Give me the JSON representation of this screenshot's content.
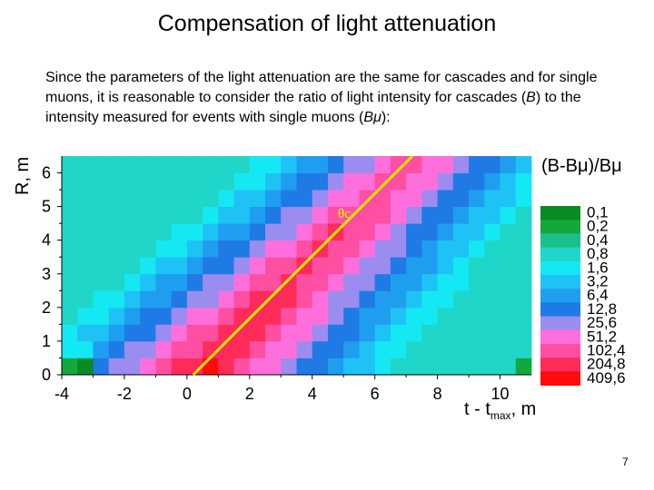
{
  "slide": {
    "title": "Compensation of light attenuation",
    "paragraph_pre": "Since the parameters of the light attenuation are the same for cascades and for single muons, it is reasonable to consider the ratio of light intensity for cascades (",
    "paragraph_B": "B",
    "paragraph_mid": ") to the intensity measured for events with single muons (",
    "paragraph_Bmu": "Bμ",
    "paragraph_post": "):",
    "page_number": "7"
  },
  "chart_data": {
    "type": "heatmap",
    "title": "",
    "xlabel_main": "t - t",
    "xlabel_sub": "max",
    "xlabel_unit": ", m",
    "ylabel": "R, m",
    "xlim": [
      -4,
      11
    ],
    "ylim": [
      0,
      6.5
    ],
    "xticks": [
      -4,
      -2,
      0,
      2,
      4,
      6,
      8,
      10
    ],
    "yticks": [
      0,
      1,
      2,
      3,
      4,
      5,
      6
    ],
    "legend_title": "(B-Bμ)/Bμ",
    "angle_label": "θc",
    "line": {
      "x1": 0.2,
      "y1": 0,
      "x2": 7.2,
      "y2": 6.5
    },
    "legend": [
      {
        "label": "0,1",
        "color": "#0a8a23"
      },
      {
        "label": "0,2",
        "color": "#12a83c"
      },
      {
        "label": "0,4",
        "color": "#1bbf8a"
      },
      {
        "label": "0,8",
        "color": "#1fd6c8"
      },
      {
        "label": "1,6",
        "color": "#14e8f2"
      },
      {
        "label": "3,2",
        "color": "#1fc2f5"
      },
      {
        "label": "6,4",
        "color": "#1f9ef0"
      },
      {
        "label": "12,8",
        "color": "#1f7ae6"
      },
      {
        "label": "25,6",
        "color": "#9b8cf0"
      },
      {
        "label": "51,2",
        "color": "#ff6fdc"
      },
      {
        "label": "102,4",
        "color": "#ff4fa2"
      },
      {
        "label": "204,8",
        "color": "#ff2c5a"
      },
      {
        "label": "409,6",
        "color": "#ff0b0b"
      }
    ]
  }
}
